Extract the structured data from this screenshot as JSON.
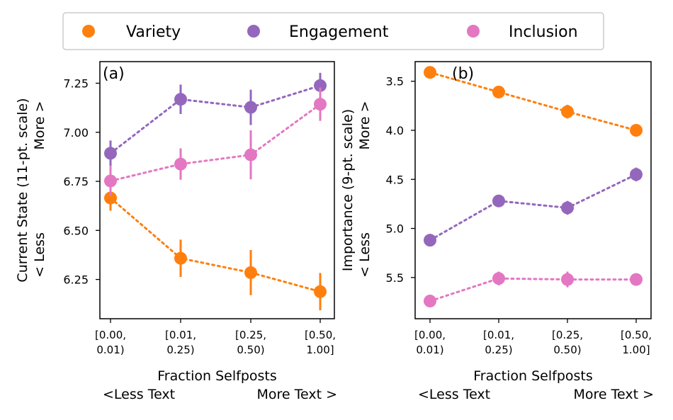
{
  "legend": {
    "entries": [
      {
        "label": "Variety",
        "color": "#ff7f0e"
      },
      {
        "label": "Engagement",
        "color": "#9467bd"
      },
      {
        "label": "Inclusion",
        "color": "#e377c2"
      }
    ],
    "placement": "top-center"
  },
  "chart_data": [
    {
      "type": "scatter",
      "panel_label": "(a)",
      "categories": [
        [
          "[0.00,",
          "0.01)"
        ],
        [
          "[0.01,",
          "0.25)"
        ],
        [
          "[0.25,",
          "0.50)"
        ],
        [
          "[0.50,",
          "1.00]"
        ]
      ],
      "xlabel": [
        "Fraction Selfposts",
        "<Less Text",
        "More Text >"
      ],
      "ylabel": [
        "Current State (11-pt. scale)",
        "More >",
        "< Less"
      ],
      "ylim": [
        6.05,
        7.36
      ],
      "y_inverted": false,
      "yticks": [
        6.25,
        6.5,
        6.75,
        7.0,
        7.25
      ],
      "ytick_labels": [
        "6.25",
        "6.50",
        "6.75",
        "7.00",
        "7.25"
      ],
      "grid": false,
      "series": [
        {
          "name": "Variety",
          "color": "#ff7f0e",
          "values": [
            6.665,
            6.358,
            6.285,
            6.188
          ],
          "errors": [
            0.065,
            0.095,
            0.115,
            0.095
          ]
        },
        {
          "name": "Engagement",
          "color": "#9467bd",
          "values": [
            6.893,
            7.168,
            7.127,
            7.238
          ],
          "errors": [
            0.065,
            0.075,
            0.09,
            0.065
          ]
        },
        {
          "name": "Inclusion",
          "color": "#e377c2",
          "values": [
            6.752,
            6.838,
            6.885,
            7.143
          ],
          "errors": [
            0.075,
            0.08,
            0.125,
            0.085
          ]
        }
      ]
    },
    {
      "type": "scatter",
      "panel_label": "(b)",
      "categories": [
        [
          "[0.00,",
          "0.01)"
        ],
        [
          "[0.01,",
          "0.25)"
        ],
        [
          "[0.25,",
          "0.50)"
        ],
        [
          "[0.50,",
          "1.00]"
        ]
      ],
      "xlabel": [
        "Fraction Selfposts",
        "<Less Text",
        "More Text >"
      ],
      "ylabel": [
        "Importance (9-pt. scale)",
        "More >",
        "< Less"
      ],
      "ylim": [
        3.3,
        5.92
      ],
      "y_inverted": true,
      "yticks": [
        3.5,
        4.0,
        4.5,
        5.0,
        5.5
      ],
      "ytick_labels": [
        "3.5",
        "4.0",
        "4.5",
        "5.0",
        "5.5"
      ],
      "grid": false,
      "series": [
        {
          "name": "Variety",
          "color": "#ff7f0e",
          "values": [
            3.41,
            3.61,
            3.81,
            4.0
          ],
          "errors": [
            0.04,
            0.06,
            0.07,
            0.06
          ]
        },
        {
          "name": "Engagement",
          "color": "#9467bd",
          "values": [
            5.12,
            4.72,
            4.79,
            4.45
          ],
          "errors": [
            0.03,
            0.06,
            0.07,
            0.07
          ]
        },
        {
          "name": "Inclusion",
          "color": "#e377c2",
          "values": [
            5.74,
            5.51,
            5.52,
            5.52
          ],
          "errors": [
            0.04,
            0.07,
            0.08,
            0.06
          ]
        }
      ]
    }
  ]
}
